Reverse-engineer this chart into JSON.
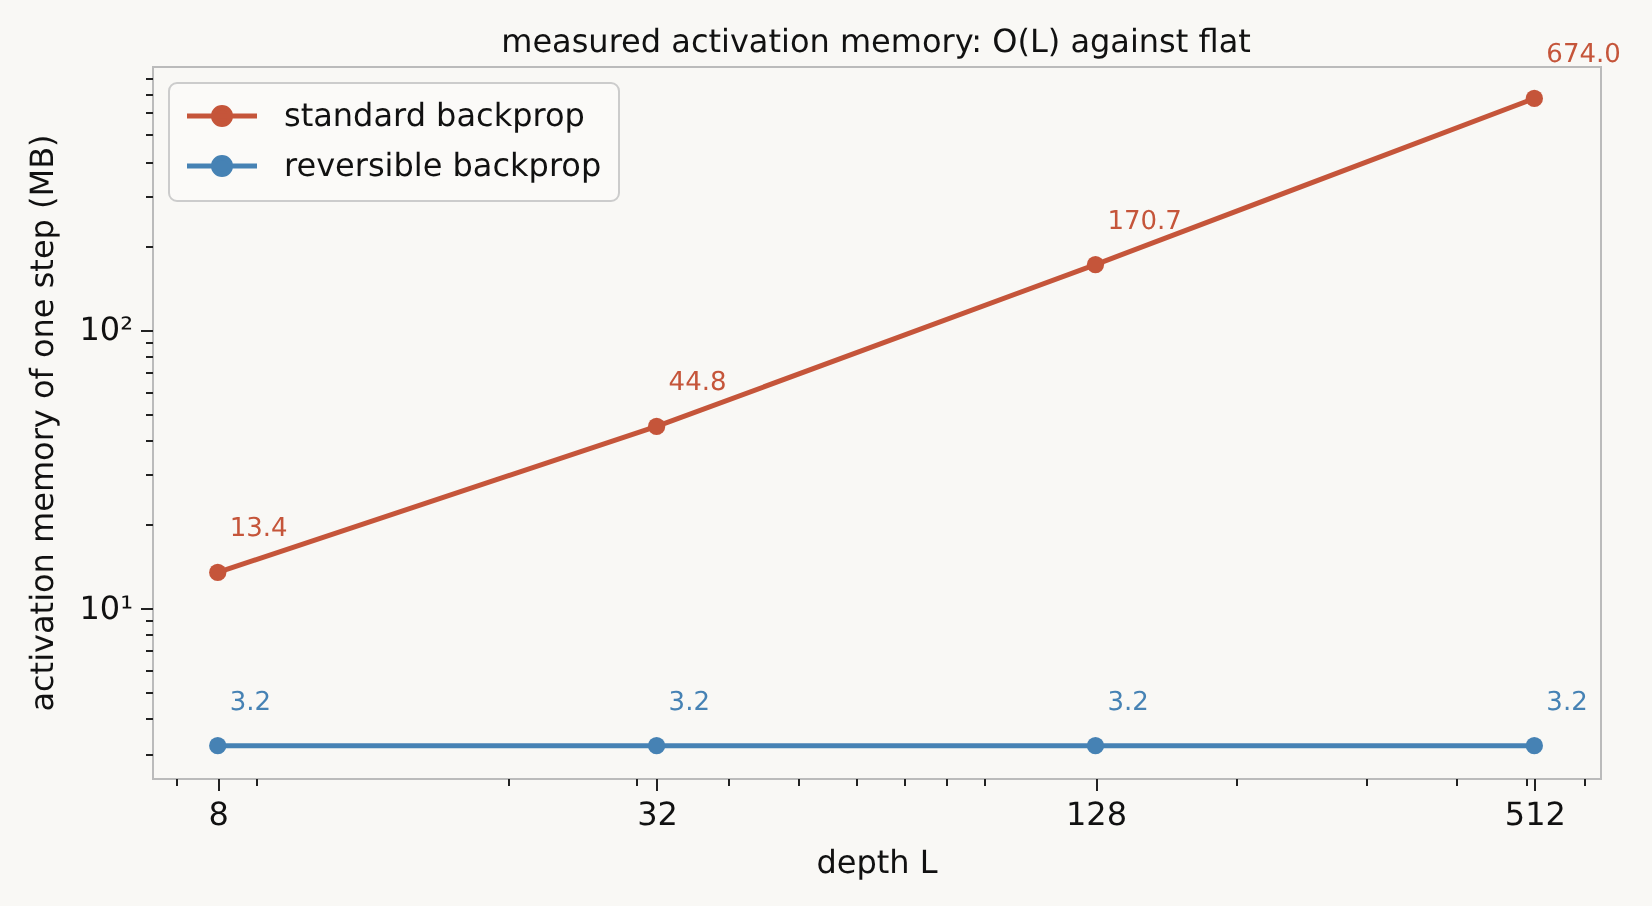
{
  "chart_data": {
    "type": "line",
    "title": "measured activation memory: O(L) against flat",
    "xlabel": "depth L",
    "ylabel": "activation memory of one step (MB)",
    "x": [
      8,
      32,
      128,
      512
    ],
    "series": [
      {
        "name": "standard backprop",
        "color": "#c5553a",
        "values": [
          13.4,
          44.8,
          170.7,
          674.0
        ],
        "value_labels": [
          "13.4",
          "44.8",
          "170.7",
          "674.0"
        ]
      },
      {
        "name": "reversible backprop",
        "color": "#4682b4",
        "values": [
          3.2,
          3.2,
          3.2,
          3.2
        ],
        "value_labels": [
          "3.2",
          "3.2",
          "3.2",
          "3.2"
        ]
      }
    ],
    "log": "xy",
    "xlim": [
      6.5,
      630
    ],
    "ylim": [
      2.45,
      881
    ],
    "xticks": [
      8,
      32,
      128,
      512,
      {
        "value": 7,
        "label": null
      },
      {
        "value": 9,
        "label": null
      },
      {
        "value": 20,
        "label": null
      },
      {
        "value": 30,
        "label": null
      },
      {
        "value": 40,
        "label": null
      },
      {
        "value": 50,
        "label": null
      },
      {
        "value": 60,
        "label": null
      },
      {
        "value": 70,
        "label": null
      },
      {
        "value": 80,
        "label": null
      },
      {
        "value": 90,
        "label": null
      },
      {
        "value": 200,
        "label": null
      },
      {
        "value": 300,
        "label": null
      },
      {
        "value": 400,
        "label": null
      },
      {
        "value": 500,
        "label": null
      },
      {
        "value": 600,
        "label": null
      }
    ],
    "yticks": [
      {
        "value": 10,
        "label": "10¹"
      },
      {
        "value": 100,
        "label": "10²"
      },
      {
        "value": 3,
        "label": null
      },
      {
        "value": 4,
        "label": null
      },
      {
        "value": 5,
        "label": null
      },
      {
        "value": 6,
        "label": null
      },
      {
        "value": 7,
        "label": null
      },
      {
        "value": 8,
        "label": null
      },
      {
        "value": 9,
        "label": null
      },
      {
        "value": 20,
        "label": null
      },
      {
        "value": 30,
        "label": null
      },
      {
        "value": 40,
        "label": null
      },
      {
        "value": 50,
        "label": null
      },
      {
        "value": 60,
        "label": null
      },
      {
        "value": 70,
        "label": null
      },
      {
        "value": 80,
        "label": null
      },
      {
        "value": 90,
        "label": null
      },
      {
        "value": 200,
        "label": null
      },
      {
        "value": 300,
        "label": null
      },
      {
        "value": 400,
        "label": null
      },
      {
        "value": 500,
        "label": null
      },
      {
        "value": 600,
        "label": null
      },
      {
        "value": 700,
        "label": null
      },
      {
        "value": 800,
        "label": null
      }
    ],
    "grid": false,
    "legend": "top left",
    "marker": "circle",
    "line_style": "solid"
  }
}
